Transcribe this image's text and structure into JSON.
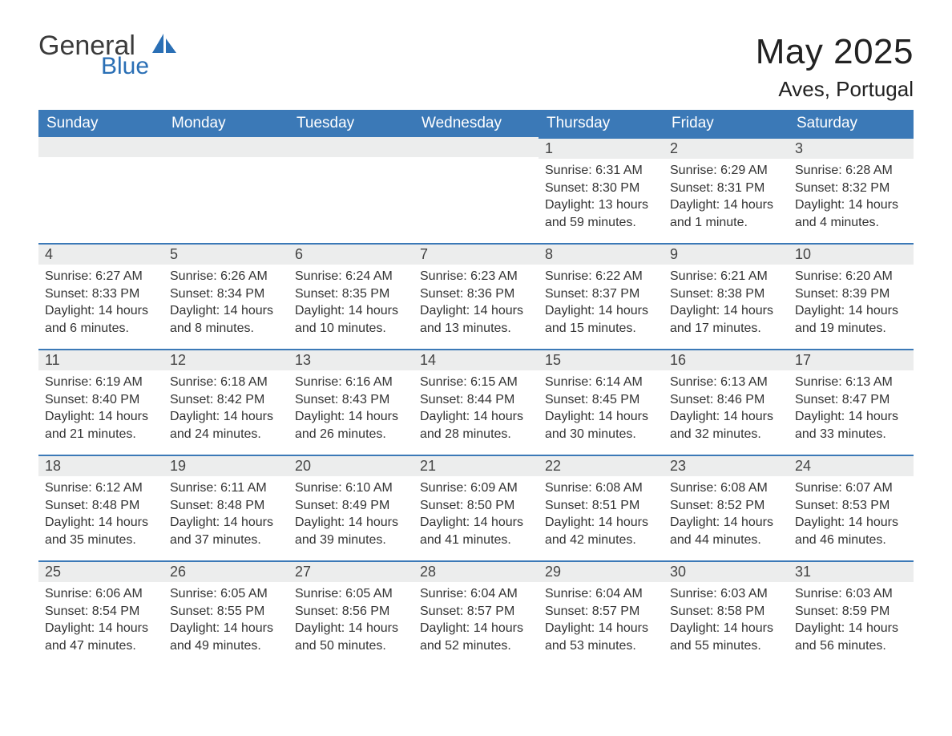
{
  "brand": {
    "general": "General",
    "blue": "Blue",
    "icon_color": "#2a6fb5"
  },
  "title": "May 2025",
  "location": "Aves, Portugal",
  "colors": {
    "header_bg": "#3b79b7",
    "header_text": "#ffffff",
    "daynum_bg": "#eceded",
    "daynum_border": "#3b79b7",
    "body_text": "#333333",
    "background": "#ffffff"
  },
  "typography": {
    "title_fontsize": 44,
    "location_fontsize": 26,
    "weekday_fontsize": 19,
    "daynum_fontsize": 18,
    "body_fontsize": 16
  },
  "weekdays": [
    "Sunday",
    "Monday",
    "Tuesday",
    "Wednesday",
    "Thursday",
    "Friday",
    "Saturday"
  ],
  "labels": {
    "sunrise": "Sunrise:",
    "sunset": "Sunset:",
    "daylight": "Daylight:"
  },
  "weeks": [
    [
      null,
      null,
      null,
      null,
      {
        "n": "1",
        "sunrise": "6:31 AM",
        "sunset": "8:30 PM",
        "daylight": "13 hours and 59 minutes."
      },
      {
        "n": "2",
        "sunrise": "6:29 AM",
        "sunset": "8:31 PM",
        "daylight": "14 hours and 1 minute."
      },
      {
        "n": "3",
        "sunrise": "6:28 AM",
        "sunset": "8:32 PM",
        "daylight": "14 hours and 4 minutes."
      }
    ],
    [
      {
        "n": "4",
        "sunrise": "6:27 AM",
        "sunset": "8:33 PM",
        "daylight": "14 hours and 6 minutes."
      },
      {
        "n": "5",
        "sunrise": "6:26 AM",
        "sunset": "8:34 PM",
        "daylight": "14 hours and 8 minutes."
      },
      {
        "n": "6",
        "sunrise": "6:24 AM",
        "sunset": "8:35 PM",
        "daylight": "14 hours and 10 minutes."
      },
      {
        "n": "7",
        "sunrise": "6:23 AM",
        "sunset": "8:36 PM",
        "daylight": "14 hours and 13 minutes."
      },
      {
        "n": "8",
        "sunrise": "6:22 AM",
        "sunset": "8:37 PM",
        "daylight": "14 hours and 15 minutes."
      },
      {
        "n": "9",
        "sunrise": "6:21 AM",
        "sunset": "8:38 PM",
        "daylight": "14 hours and 17 minutes."
      },
      {
        "n": "10",
        "sunrise": "6:20 AM",
        "sunset": "8:39 PM",
        "daylight": "14 hours and 19 minutes."
      }
    ],
    [
      {
        "n": "11",
        "sunrise": "6:19 AM",
        "sunset": "8:40 PM",
        "daylight": "14 hours and 21 minutes."
      },
      {
        "n": "12",
        "sunrise": "6:18 AM",
        "sunset": "8:42 PM",
        "daylight": "14 hours and 24 minutes."
      },
      {
        "n": "13",
        "sunrise": "6:16 AM",
        "sunset": "8:43 PM",
        "daylight": "14 hours and 26 minutes."
      },
      {
        "n": "14",
        "sunrise": "6:15 AM",
        "sunset": "8:44 PM",
        "daylight": "14 hours and 28 minutes."
      },
      {
        "n": "15",
        "sunrise": "6:14 AM",
        "sunset": "8:45 PM",
        "daylight": "14 hours and 30 minutes."
      },
      {
        "n": "16",
        "sunrise": "6:13 AM",
        "sunset": "8:46 PM",
        "daylight": "14 hours and 32 minutes."
      },
      {
        "n": "17",
        "sunrise": "6:13 AM",
        "sunset": "8:47 PM",
        "daylight": "14 hours and 33 minutes."
      }
    ],
    [
      {
        "n": "18",
        "sunrise": "6:12 AM",
        "sunset": "8:48 PM",
        "daylight": "14 hours and 35 minutes."
      },
      {
        "n": "19",
        "sunrise": "6:11 AM",
        "sunset": "8:48 PM",
        "daylight": "14 hours and 37 minutes."
      },
      {
        "n": "20",
        "sunrise": "6:10 AM",
        "sunset": "8:49 PM",
        "daylight": "14 hours and 39 minutes."
      },
      {
        "n": "21",
        "sunrise": "6:09 AM",
        "sunset": "8:50 PM",
        "daylight": "14 hours and 41 minutes."
      },
      {
        "n": "22",
        "sunrise": "6:08 AM",
        "sunset": "8:51 PM",
        "daylight": "14 hours and 42 minutes."
      },
      {
        "n": "23",
        "sunrise": "6:08 AM",
        "sunset": "8:52 PM",
        "daylight": "14 hours and 44 minutes."
      },
      {
        "n": "24",
        "sunrise": "6:07 AM",
        "sunset": "8:53 PM",
        "daylight": "14 hours and 46 minutes."
      }
    ],
    [
      {
        "n": "25",
        "sunrise": "6:06 AM",
        "sunset": "8:54 PM",
        "daylight": "14 hours and 47 minutes."
      },
      {
        "n": "26",
        "sunrise": "6:05 AM",
        "sunset": "8:55 PM",
        "daylight": "14 hours and 49 minutes."
      },
      {
        "n": "27",
        "sunrise": "6:05 AM",
        "sunset": "8:56 PM",
        "daylight": "14 hours and 50 minutes."
      },
      {
        "n": "28",
        "sunrise": "6:04 AM",
        "sunset": "8:57 PM",
        "daylight": "14 hours and 52 minutes."
      },
      {
        "n": "29",
        "sunrise": "6:04 AM",
        "sunset": "8:57 PM",
        "daylight": "14 hours and 53 minutes."
      },
      {
        "n": "30",
        "sunrise": "6:03 AM",
        "sunset": "8:58 PM",
        "daylight": "14 hours and 55 minutes."
      },
      {
        "n": "31",
        "sunrise": "6:03 AM",
        "sunset": "8:59 PM",
        "daylight": "14 hours and 56 minutes."
      }
    ]
  ]
}
